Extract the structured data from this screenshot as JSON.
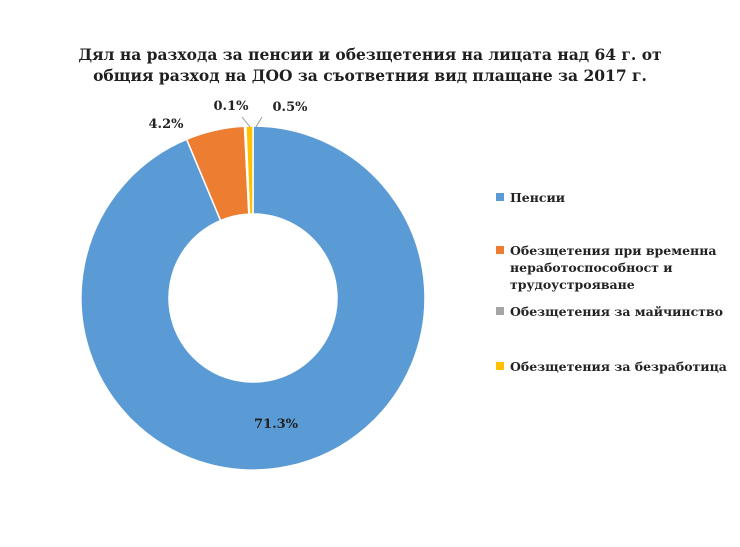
{
  "chart_data": {
    "type": "pie",
    "title_lines": [
      "Дял на разхода за пенсии и обезщетения на лицата над 64 г. от",
      "общия разход на ДОО за съответния вид плащане за 2017 г."
    ],
    "slices": [
      {
        "name": "Пенсии",
        "value": 71.3,
        "label": "71.3%",
        "color": "#5b9bd5"
      },
      {
        "name": "Обезщетения при временна неработоспособност и трудоустрояване",
        "value": 4.2,
        "label": "4.2%",
        "color": "#ed7d31"
      },
      {
        "name": "Обезщетения за майчинство",
        "value": 0.1,
        "label": "0.1%",
        "color": "#a5a5a5"
      },
      {
        "name": "Обезщетения за безработица",
        "value": 0.5,
        "label": "0.5%",
        "color": "#ffc000"
      }
    ],
    "legend_position": "right",
    "donut": true
  }
}
